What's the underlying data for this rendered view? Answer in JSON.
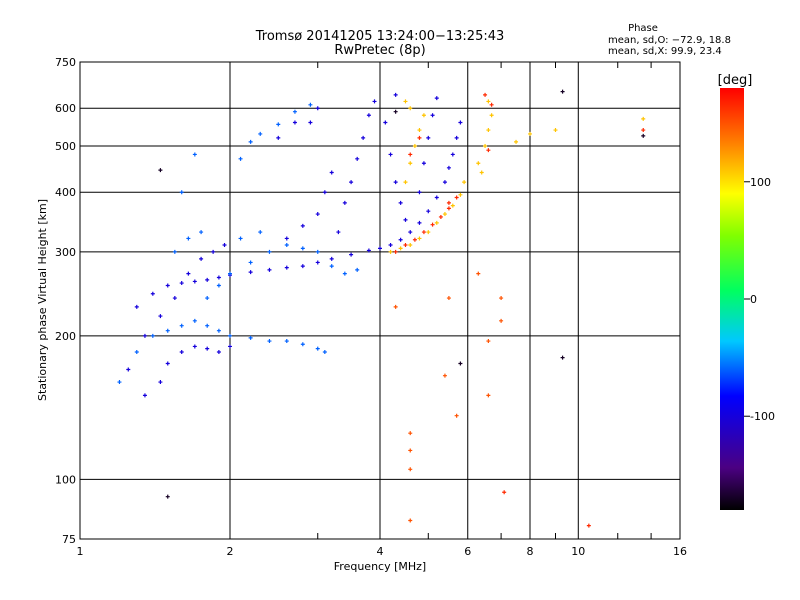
{
  "chart_data": {
    "type": "scatter",
    "title": "Tromsø 20141205 13:24:00−13:25:43",
    "subtitle": "RwPretec (8p)",
    "xlabel": "Frequency [MHz]",
    "ylabel": "Stationary phase Virtual Height [km]",
    "x_scale": "log",
    "y_scale": "log",
    "xlim": [
      1,
      16
    ],
    "ylim": [
      75,
      750
    ],
    "x_ticks": [
      1,
      2,
      4,
      6,
      8,
      10,
      16
    ],
    "y_ticks": [
      75,
      100,
      200,
      300,
      400,
      500,
      600,
      750
    ],
    "x_minor_ticks": [
      3,
      5,
      7,
      9,
      12,
      14
    ],
    "grid": true,
    "phase_box": {
      "title": "Phase",
      "line_o": "mean, sd,O: −72.9, 18.8",
      "line_x": "mean, sd,X:  99.9, 23.4"
    },
    "colorbar": {
      "label": "[deg]",
      "range": [
        -180,
        180
      ],
      "ticks": [
        100,
        0,
        -100
      ],
      "colormap": "rainbow"
    },
    "traces": [
      {
        "name": "",
        "phase_deg": -100,
        "points": [
          [
            1.35,
            150
          ],
          [
            1.45,
            160
          ],
          [
            1.5,
            175
          ],
          [
            1.6,
            185
          ],
          [
            1.7,
            190
          ],
          [
            1.8,
            188
          ],
          [
            1.9,
            185
          ],
          [
            2.0,
            190
          ],
          [
            1.3,
            230
          ],
          [
            1.4,
            245
          ],
          [
            1.5,
            255
          ],
          [
            1.6,
            258
          ],
          [
            1.7,
            260
          ],
          [
            1.8,
            262
          ],
          [
            1.9,
            265
          ],
          [
            2.0,
            268
          ],
          [
            2.2,
            272
          ],
          [
            2.4,
            275
          ],
          [
            2.6,
            278
          ],
          [
            2.8,
            280
          ],
          [
            3.0,
            285
          ],
          [
            3.2,
            290
          ],
          [
            3.5,
            296
          ],
          [
            3.8,
            302
          ],
          [
            4.0,
            305
          ],
          [
            4.2,
            310
          ],
          [
            4.4,
            318
          ],
          [
            4.6,
            330
          ],
          [
            4.8,
            345
          ],
          [
            5.0,
            365
          ],
          [
            5.2,
            390
          ],
          [
            5.4,
            420
          ],
          [
            5.5,
            450
          ],
          [
            5.6,
            480
          ],
          [
            5.7,
            520
          ],
          [
            5.8,
            560
          ],
          [
            3.3,
            330
          ],
          [
            3.4,
            380
          ],
          [
            3.5,
            420
          ],
          [
            3.6,
            470
          ],
          [
            3.7,
            520
          ],
          [
            3.8,
            580
          ],
          [
            3.9,
            620
          ],
          [
            4.3,
            640
          ],
          [
            4.1,
            560
          ],
          [
            4.2,
            480
          ],
          [
            4.3,
            420
          ],
          [
            4.4,
            380
          ],
          [
            4.5,
            350
          ],
          [
            4.8,
            400
          ],
          [
            4.9,
            460
          ],
          [
            5.0,
            520
          ],
          [
            5.1,
            580
          ],
          [
            5.2,
            630
          ],
          [
            2.6,
            320
          ],
          [
            2.8,
            340
          ],
          [
            3.0,
            360
          ],
          [
            3.1,
            400
          ],
          [
            3.2,
            440
          ],
          [
            2.9,
            560
          ],
          [
            3.0,
            600
          ],
          [
            2.7,
            560
          ],
          [
            2.5,
            520
          ],
          [
            1.25,
            170
          ],
          [
            1.35,
            200
          ],
          [
            1.45,
            220
          ],
          [
            1.55,
            240
          ],
          [
            1.65,
            270
          ],
          [
            1.75,
            290
          ],
          [
            1.85,
            300
          ],
          [
            1.95,
            310
          ]
        ]
      },
      {
        "name": "",
        "phase_deg": -60,
        "points": [
          [
            1.2,
            160
          ],
          [
            1.3,
            185
          ],
          [
            1.4,
            200
          ],
          [
            1.5,
            205
          ],
          [
            1.6,
            210
          ],
          [
            1.7,
            215
          ],
          [
            1.8,
            210
          ],
          [
            1.9,
            205
          ],
          [
            2.0,
            200
          ],
          [
            2.2,
            198
          ],
          [
            2.4,
            195
          ],
          [
            2.6,
            195
          ],
          [
            2.8,
            192
          ],
          [
            3.0,
            188
          ],
          [
            3.1,
            185
          ],
          [
            1.8,
            240
          ],
          [
            1.9,
            255
          ],
          [
            2.0,
            270
          ],
          [
            2.2,
            285
          ],
          [
            2.4,
            300
          ],
          [
            2.6,
            310
          ],
          [
            2.8,
            305
          ],
          [
            3.0,
            300
          ],
          [
            3.2,
            280
          ],
          [
            3.4,
            270
          ],
          [
            3.6,
            275
          ],
          [
            2.1,
            470
          ],
          [
            2.2,
            510
          ],
          [
            2.3,
            530
          ],
          [
            2.5,
            555
          ],
          [
            2.7,
            590
          ],
          [
            2.9,
            610
          ],
          [
            1.7,
            480
          ],
          [
            1.6,
            400
          ],
          [
            1.55,
            300
          ],
          [
            1.65,
            320
          ],
          [
            1.75,
            330
          ],
          [
            2.1,
            320
          ],
          [
            2.3,
            330
          ]
        ]
      },
      {
        "name": "",
        "phase_deg": 110,
        "points": [
          [
            4.2,
            300
          ],
          [
            4.4,
            305
          ],
          [
            4.6,
            310
          ],
          [
            4.8,
            320
          ],
          [
            5.0,
            330
          ],
          [
            5.2,
            345
          ],
          [
            5.4,
            360
          ],
          [
            5.6,
            375
          ],
          [
            5.8,
            395
          ],
          [
            5.9,
            420
          ],
          [
            4.5,
            420
          ],
          [
            4.6,
            460
          ],
          [
            4.7,
            500
          ],
          [
            4.8,
            540
          ],
          [
            4.9,
            580
          ],
          [
            4.5,
            620
          ],
          [
            4.6,
            600
          ],
          [
            6.3,
            460
          ],
          [
            6.5,
            500
          ],
          [
            6.6,
            540
          ],
          [
            6.7,
            580
          ],
          [
            6.6,
            620
          ],
          [
            6.4,
            440
          ],
          [
            7.5,
            510
          ],
          [
            8.0,
            530
          ],
          [
            9.0,
            540
          ],
          [
            13.5,
            570
          ]
        ]
      },
      {
        "name": "",
        "phase_deg": 165,
        "points": [
          [
            4.3,
            300
          ],
          [
            4.5,
            310
          ],
          [
            4.7,
            318
          ],
          [
            4.9,
            330
          ],
          [
            5.1,
            342
          ],
          [
            5.3,
            355
          ],
          [
            5.5,
            370
          ],
          [
            5.7,
            390
          ],
          [
            6.5,
            640
          ],
          [
            6.7,
            610
          ],
          [
            6.6,
            490
          ],
          [
            4.6,
            480
          ],
          [
            4.8,
            520
          ],
          [
            7.1,
            94
          ],
          [
            10.5,
            80
          ],
          [
            13.5,
            540
          ],
          [
            5.5,
            380
          ]
        ]
      },
      {
        "name": "",
        "phase_deg": 150,
        "points": [
          [
            4.6,
            125
          ],
          [
            4.6,
            115
          ],
          [
            4.6,
            105
          ],
          [
            4.6,
            82
          ],
          [
            6.6,
            195
          ],
          [
            6.6,
            150
          ],
          [
            7.0,
            215
          ],
          [
            7.0,
            240
          ],
          [
            6.3,
            270
          ],
          [
            5.5,
            240
          ],
          [
            4.3,
            230
          ],
          [
            5.4,
            165
          ],
          [
            5.7,
            136
          ]
        ]
      },
      {
        "name": "",
        "phase_deg": -170,
        "points": [
          [
            9.3,
            650
          ],
          [
            9.3,
            180
          ],
          [
            5.8,
            175
          ],
          [
            13.5,
            525
          ],
          [
            1.5,
            92
          ],
          [
            1.45,
            445
          ],
          [
            4.3,
            590
          ]
        ]
      }
    ]
  }
}
